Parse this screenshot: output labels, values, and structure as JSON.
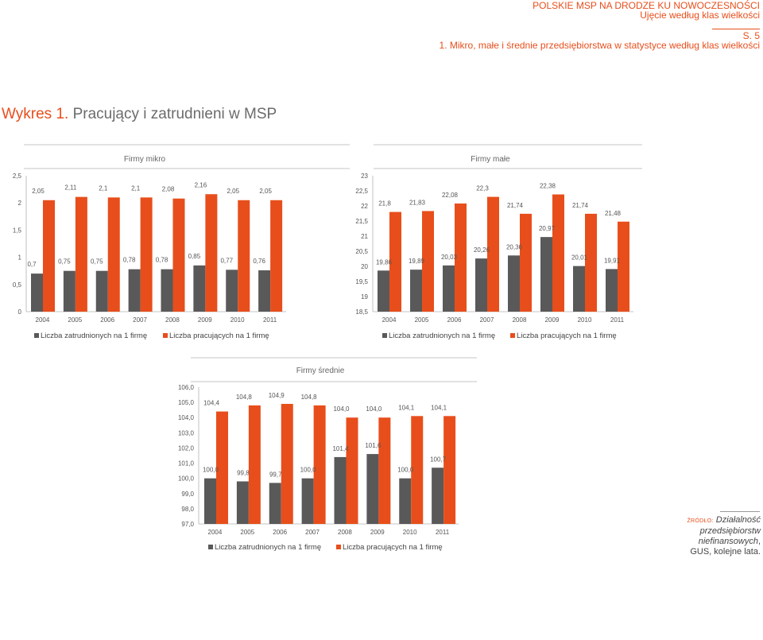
{
  "header": {
    "line1": "POLSKIE MSP NA DRODZE KU NOWOCZESNOŚCI",
    "line2": "Ujęcie według klas wielkości",
    "page": "S. 5",
    "section": "1. Mikro, małe i średnie przedsiębiorstwa w statystyce według klas wielkości"
  },
  "figure": {
    "label": "Wykres 1.",
    "title": "Pracujący i zatrudnieni w MSP"
  },
  "source": {
    "label": "ŹRÓDŁO:",
    "italic": "Działalność przedsiębiorstw niefinansowych",
    "rest": ", GUS, kolejne lata."
  },
  "colors": {
    "employed": "#595959",
    "working": "#e84e1b",
    "axis": "#b3b3b3",
    "text": "#555555"
  },
  "chart_data": [
    {
      "type": "bar",
      "title": "Firmy mikro",
      "categories": [
        "2004",
        "2005",
        "2006",
        "2007",
        "2008",
        "2009",
        "2010",
        "2011"
      ],
      "ylim": [
        0,
        2.5
      ],
      "yticks": [
        "0",
        "0,5",
        "1",
        "1,5",
        "2",
        "2,5"
      ],
      "series": [
        {
          "name": "Liczba zatrudnionych na 1 firmę",
          "values": [
            0.7,
            0.75,
            0.75,
            0.78,
            0.78,
            0.85,
            0.77,
            0.76
          ],
          "labels": [
            "0,7",
            "0,75",
            "0,75",
            "0,78",
            "0,78",
            "0,85",
            "0,77",
            "0,76"
          ]
        },
        {
          "name": "Liczba pracujących na 1 firmę",
          "values": [
            2.05,
            2.11,
            2.1,
            2.1,
            2.08,
            2.16,
            2.05,
            2.05
          ],
          "labels": [
            "2,05",
            "2,11",
            "2,1",
            "2,1",
            "2,08",
            "2,16",
            "2,05",
            "2,05"
          ]
        }
      ],
      "grid": false,
      "legend": "bottom"
    },
    {
      "type": "bar",
      "title": "Firmy małe",
      "categories": [
        "2004",
        "2005",
        "2006",
        "2007",
        "2008",
        "2009",
        "2010",
        "2011"
      ],
      "ylim": [
        18.5,
        23
      ],
      "yticks": [
        "18,5",
        "19",
        "19,5",
        "20",
        "20,5",
        "21",
        "21,5",
        "22",
        "22,5",
        "23"
      ],
      "series": [
        {
          "name": "Liczba zatrudnionych na 1 firmę",
          "values": [
            19.86,
            19.89,
            20.03,
            20.26,
            20.36,
            20.97,
            20.01,
            19.91
          ],
          "labels": [
            "19,86",
            "19,89",
            "20,03",
            "20,26",
            "20,36",
            "20,97",
            "20,01",
            "19,91"
          ]
        },
        {
          "name": "Liczba pracujących na 1 firmę",
          "values": [
            21.8,
            21.83,
            22.08,
            22.3,
            21.74,
            22.38,
            21.74,
            21.48
          ],
          "labels": [
            "21,8",
            "21,83",
            "22,08",
            "22,3",
            "21,74",
            "22,38",
            "21,74",
            "21,48"
          ]
        }
      ],
      "grid": false,
      "legend": "bottom"
    },
    {
      "type": "bar",
      "title": "Firmy średnie",
      "categories": [
        "2004",
        "2005",
        "2006",
        "2007",
        "2008",
        "2009",
        "2010",
        "2011"
      ],
      "ylim": [
        97,
        106
      ],
      "yticks": [
        "97,0",
        "98,0",
        "99,0",
        "100,0",
        "101,0",
        "102,0",
        "103,0",
        "104,0",
        "105,0",
        "106,0"
      ],
      "series": [
        {
          "name": "Liczba zatrudnionych na 1 firmę",
          "values": [
            100.0,
            99.8,
            99.7,
            100.0,
            101.4,
            101.6,
            100.0,
            100.7
          ],
          "labels": [
            "100,0",
            "99,8",
            "99,7",
            "100,0",
            "101,4",
            "101,6",
            "100,0",
            "100,7"
          ]
        },
        {
          "name": "Liczba pracujących na 1 firmę",
          "values": [
            104.4,
            104.8,
            104.9,
            104.8,
            104.0,
            104.0,
            104.1,
            104.1
          ],
          "labels": [
            "104,4",
            "104,8",
            "104,9",
            "104,8",
            "104,0",
            "104,0",
            "104,1",
            "104,1"
          ]
        }
      ],
      "grid": false,
      "legend": "bottom"
    }
  ]
}
